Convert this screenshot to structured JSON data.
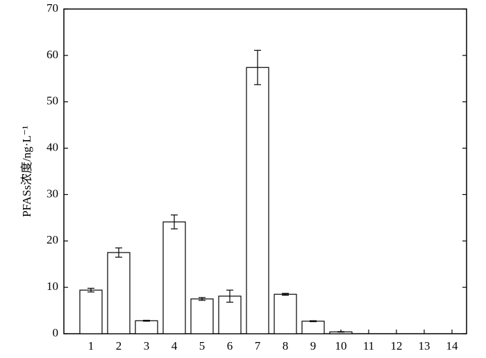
{
  "chart_data": {
    "type": "bar",
    "y_label": "PFASs浓度/ng·L⁻¹",
    "categories": [
      "1",
      "2",
      "3",
      "4",
      "5",
      "6",
      "7",
      "8",
      "9",
      "10",
      "11",
      "12",
      "13",
      "14"
    ],
    "values": [
      9.4,
      17.5,
      2.8,
      24.1,
      7.5,
      8.1,
      57.4,
      8.5,
      2.7,
      0.4,
      0,
      0,
      0,
      0
    ],
    "errors": [
      0.4,
      1.0,
      0.1,
      1.5,
      0.3,
      1.3,
      3.7,
      0.2,
      0.1,
      0.05,
      0,
      0,
      0,
      0
    ],
    "color": "#ffffff",
    "ylim": [
      0,
      70
    ],
    "yticks": [
      0,
      10,
      20,
      30,
      40,
      50,
      60,
      70
    ]
  }
}
